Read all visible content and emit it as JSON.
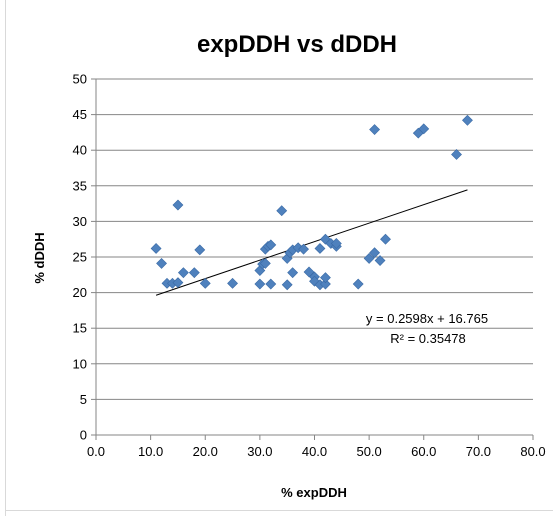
{
  "chart_data": {
    "type": "scatter",
    "title": "expDDH vs dDDH",
    "xlabel": "% expDDH",
    "ylabel": "% dDDH",
    "xlim": [
      0,
      80
    ],
    "ylim": [
      0,
      50
    ],
    "x_ticks": [
      "0.0",
      "10.0",
      "20.0",
      "30.0",
      "40.0",
      "50.0",
      "60.0",
      "70.0",
      "80.0"
    ],
    "y_ticks": [
      "0",
      "5",
      "10",
      "15",
      "20",
      "25",
      "30",
      "35",
      "40",
      "45",
      "50"
    ],
    "grid": "horizontal",
    "marker": "diamond",
    "marker_color": "#4f81bd",
    "series": [
      {
        "x": [
          11,
          12,
          13,
          14,
          15,
          15,
          16,
          18,
          19,
          20,
          25,
          30,
          30,
          30.5,
          31,
          31,
          31.5,
          32,
          32,
          34,
          35,
          35,
          35.5,
          36,
          36,
          37,
          38,
          39,
          40,
          40,
          41,
          41,
          42,
          42,
          42,
          43,
          44,
          44,
          48,
          50,
          51,
          51,
          52,
          53,
          59,
          60,
          66,
          68
        ],
        "y": [
          26.2,
          24.1,
          21.3,
          21.3,
          21.4,
          32.3,
          22.8,
          22.8,
          26,
          21.3,
          21.3,
          21.2,
          23.1,
          24,
          26.1,
          24.1,
          26.5,
          21.2,
          26.7,
          31.5,
          21.1,
          24.8,
          25.6,
          22.8,
          26.0,
          26.3,
          26.1,
          22.9,
          22.2,
          21.6,
          26.2,
          21.1,
          27.5,
          21.2,
          22.1,
          26.9,
          26.5,
          26.9,
          21.2,
          24.8,
          25.6,
          42.9,
          24.5,
          27.5,
          42.4,
          43.0,
          39.4,
          44.2
        ]
      }
    ],
    "trendline": {
      "type": "linear",
      "slope": 0.2598,
      "intercept": 16.765,
      "x_range": [
        11,
        68
      ],
      "equation": "y = 0.2598x + 16.765",
      "r_squared": "R² = 0.35478"
    }
  }
}
